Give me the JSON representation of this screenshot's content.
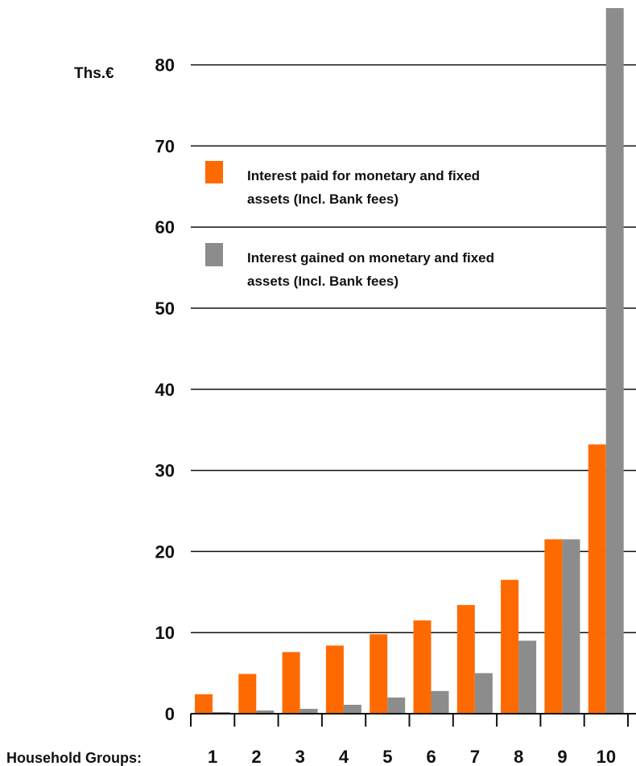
{
  "chart_data": {
    "type": "bar",
    "unit_label": "Ths.€",
    "xlabel": "Household Groups:",
    "categories": [
      "1",
      "2",
      "3",
      "4",
      "5",
      "6",
      "7",
      "8",
      "9",
      "10"
    ],
    "ylim": [
      0,
      87
    ],
    "yticks": [
      0,
      10,
      20,
      30,
      40,
      50,
      60,
      70,
      80
    ],
    "grid": true,
    "legend_position": "top-left",
    "series": [
      {
        "name": "Interest paid for monetary and fixed assets (Incl. Bank fees)",
        "legend_lines": [
          "Interest paid for monetary and fixed",
          "assets (Incl. Bank fees)"
        ],
        "color": "#ff6a00",
        "values": [
          2.4,
          4.9,
          7.6,
          8.4,
          9.8,
          11.5,
          13.4,
          16.5,
          21.5,
          33.2
        ]
      },
      {
        "name": "Interest gained on monetary and fixed assets (Incl. Bank fees)",
        "legend_lines": [
          "Interest gained on monetary and fixed",
          "assets (Incl. Bank fees)"
        ],
        "color": "#8c8c8c",
        "values": [
          0.2,
          0.4,
          0.6,
          1.1,
          2.0,
          2.8,
          5.0,
          9.0,
          21.5,
          87.0
        ]
      }
    ]
  }
}
